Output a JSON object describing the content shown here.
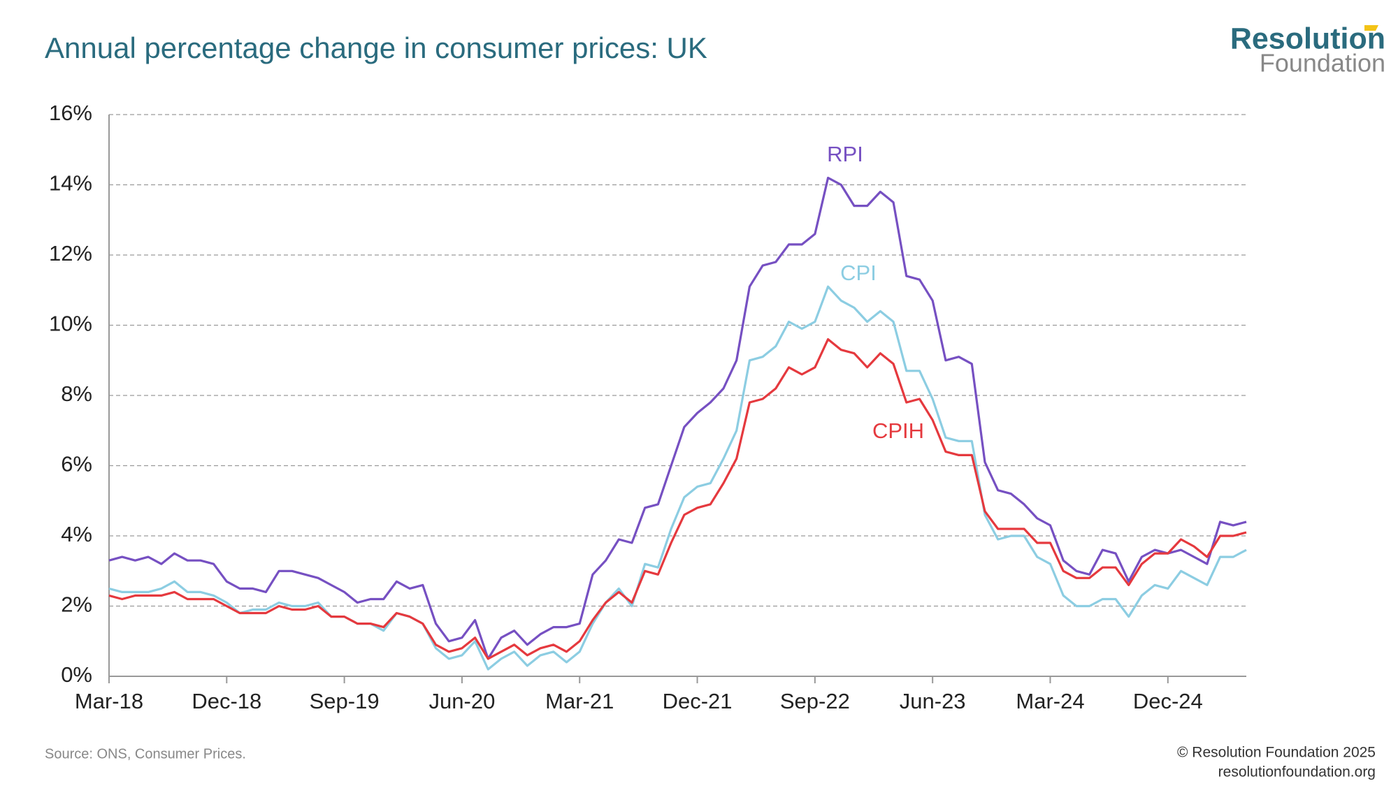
{
  "chart_data": {
    "type": "line",
    "title": "Annual percentage change in consumer prices: UK",
    "logo": [
      "Resolution",
      "Foundation"
    ],
    "source": "Source: ONS, Consumer Prices.",
    "copyright": "© Resolution Foundation 2025",
    "website": "resolutionfoundation.org",
    "categories": [
      "Mar-18",
      null,
      null,
      null,
      null,
      null,
      null,
      null,
      null,
      "Dec-18",
      null,
      null,
      null,
      null,
      null,
      null,
      null,
      null,
      "Sep-19",
      null,
      null,
      null,
      null,
      null,
      null,
      null,
      null,
      "Jun-20",
      null,
      null,
      null,
      null,
      null,
      null,
      null,
      null,
      "Mar-21",
      null,
      null,
      null,
      null,
      null,
      null,
      null,
      null,
      "Dec-21",
      null,
      null,
      null,
      null,
      null,
      null,
      null,
      null,
      "Sep-22",
      null,
      null,
      null,
      null,
      null,
      null,
      null,
      null,
      "Jun-23",
      null,
      null,
      null,
      null,
      null,
      null,
      null,
      null,
      "Mar-24",
      null,
      null,
      null,
      null,
      null,
      null,
      null,
      null,
      "Dec-24",
      null,
      null,
      null,
      null,
      null,
      null
    ],
    "ylim": [
      0,
      16
    ],
    "yticks": [
      {
        "value": 0,
        "label": "0%"
      },
      {
        "value": 2,
        "label": "2%"
      },
      {
        "value": 4,
        "label": "4%"
      },
      {
        "value": 6,
        "label": "6%"
      },
      {
        "value": 8,
        "label": "8%"
      },
      {
        "value": 10,
        "label": "10%"
      },
      {
        "value": 12,
        "label": "12%"
      },
      {
        "value": 14,
        "label": "14%"
      },
      {
        "value": 16,
        "label": "16%"
      }
    ],
    "grid": true,
    "series": [
      {
        "name": "RPI",
        "color": "#7650c2",
        "values": [
          3.3,
          3.4,
          3.3,
          3.4,
          3.2,
          3.5,
          3.3,
          3.3,
          3.2,
          2.7,
          2.5,
          2.5,
          2.4,
          3.0,
          3.0,
          2.9,
          2.8,
          2.6,
          2.4,
          2.1,
          2.2,
          2.2,
          2.7,
          2.5,
          2.6,
          1.5,
          1.0,
          1.1,
          1.6,
          0.5,
          1.1,
          1.3,
          0.9,
          1.2,
          1.4,
          1.4,
          1.5,
          2.9,
          3.3,
          3.9,
          3.8,
          4.8,
          4.9,
          6.0,
          7.1,
          7.5,
          7.8,
          8.2,
          9.0,
          11.1,
          11.7,
          11.8,
          12.3,
          12.3,
          12.6,
          14.2,
          14.0,
          13.4,
          13.4,
          13.8,
          13.5,
          11.4,
          11.3,
          10.7,
          9.0,
          9.1,
          8.9,
          6.1,
          5.3,
          5.2,
          4.9,
          4.5,
          4.3,
          3.3,
          3.0,
          2.9,
          3.6,
          3.5,
          2.7,
          3.4,
          3.6,
          3.5,
          3.6,
          3.4,
          3.2,
          4.4,
          4.3,
          4.4
        ]
      },
      {
        "name": "CPI",
        "color": "#8ccde2",
        "values": [
          2.5,
          2.4,
          2.4,
          2.4,
          2.5,
          2.7,
          2.4,
          2.4,
          2.3,
          2.1,
          1.8,
          1.9,
          1.9,
          2.1,
          2.0,
          2.0,
          2.1,
          1.7,
          1.7,
          1.5,
          1.5,
          1.3,
          1.8,
          1.7,
          1.5,
          0.8,
          0.5,
          0.6,
          1.0,
          0.2,
          0.5,
          0.7,
          0.3,
          0.6,
          0.7,
          0.4,
          0.7,
          1.5,
          2.1,
          2.5,
          2.0,
          3.2,
          3.1,
          4.2,
          5.1,
          5.4,
          5.5,
          6.2,
          7.0,
          9.0,
          9.1,
          9.4,
          10.1,
          9.9,
          10.1,
          11.1,
          10.7,
          10.5,
          10.1,
          10.4,
          10.1,
          8.7,
          8.7,
          7.9,
          6.8,
          6.7,
          6.7,
          4.6,
          3.9,
          4.0,
          4.0,
          3.4,
          3.2,
          2.3,
          2.0,
          2.0,
          2.2,
          2.2,
          1.7,
          2.3,
          2.6,
          2.5,
          3.0,
          2.8,
          2.6,
          3.4,
          3.4,
          3.6
        ]
      },
      {
        "name": "CPIH",
        "color": "#e5393e",
        "values": [
          2.3,
          2.2,
          2.3,
          2.3,
          2.3,
          2.4,
          2.2,
          2.2,
          2.2,
          2.0,
          1.8,
          1.8,
          1.8,
          2.0,
          1.9,
          1.9,
          2.0,
          1.7,
          1.7,
          1.5,
          1.5,
          1.4,
          1.8,
          1.7,
          1.5,
          0.9,
          0.7,
          0.8,
          1.1,
          0.5,
          0.7,
          0.9,
          0.6,
          0.8,
          0.9,
          0.7,
          1.0,
          1.6,
          2.1,
          2.4,
          2.1,
          3.0,
          2.9,
          3.8,
          4.6,
          4.8,
          4.9,
          5.5,
          6.2,
          7.8,
          7.9,
          8.2,
          8.8,
          8.6,
          8.8,
          9.6,
          9.3,
          9.2,
          8.8,
          9.2,
          8.9,
          7.8,
          7.9,
          7.3,
          6.4,
          6.3,
          6.3,
          4.7,
          4.2,
          4.2,
          4.2,
          3.8,
          3.8,
          3.0,
          2.8,
          2.8,
          3.1,
          3.1,
          2.6,
          3.2,
          3.5,
          3.5,
          3.9,
          3.7,
          3.4,
          4.0,
          4.0,
          4.1
        ]
      }
    ]
  }
}
